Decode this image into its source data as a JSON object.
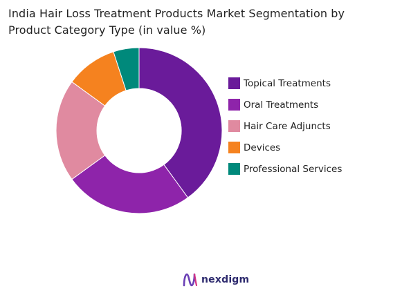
{
  "title": {
    "line1": "India Hair Loss Treatment Products Market Segmentation by",
    "line2": "Product Category Type (in value %)"
  },
  "chart_data": {
    "type": "pie",
    "style": "donut",
    "title": "India Hair Loss Treatment Products Market Segmentation by Product Category Type (in value %)",
    "categories": [
      "Topical Treatments",
      "Oral Treatments",
      "Hair Care Adjuncts",
      "Devices",
      "Professional Services"
    ],
    "values": [
      40,
      25,
      20,
      10,
      5
    ],
    "colors": [
      "#6a1b9a",
      "#8e24aa",
      "#e08aa0",
      "#f5821f",
      "#00897b"
    ],
    "legend_position": "right"
  },
  "logo": {
    "text": "nexdigm",
    "icon": "nexdigm-logo-icon",
    "color": "#2d2a6e"
  }
}
